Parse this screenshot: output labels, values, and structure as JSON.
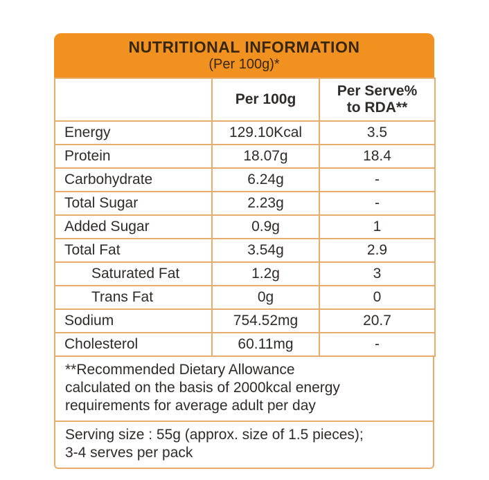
{
  "header": {
    "title": "NUTRITIONAL INFORMATION",
    "subtitle": "(Per 100g)*"
  },
  "table": {
    "columns": {
      "nutrient": "",
      "per_100g": "Per 100g",
      "per_serve_rda": [
        "Per Serve%",
        "to RDA**"
      ]
    },
    "rows": [
      {
        "label": "Energy",
        "per100g": "129.10Kcal",
        "per_serve": "3.5",
        "indent": false
      },
      {
        "label": "Protein",
        "per100g": "18.07g",
        "per_serve": "18.4",
        "indent": false
      },
      {
        "label": "Carbohydrate",
        "per100g": "6.24g",
        "per_serve": "-",
        "indent": false
      },
      {
        "label": "Total Sugar",
        "per100g": "2.23g",
        "per_serve": "-",
        "indent": false
      },
      {
        "label": "Added Sugar",
        "per100g": "0.9g",
        "per_serve": "1",
        "indent": false
      },
      {
        "label": "Total Fat",
        "per100g": "3.54g",
        "per_serve": "2.9",
        "indent": false
      },
      {
        "label": "Saturated Fat",
        "per100g": "1.2g",
        "per_serve": "3",
        "indent": true
      },
      {
        "label": "Trans Fat",
        "per100g": "0g",
        "per_serve": "0",
        "indent": true
      },
      {
        "label": "Sodium",
        "per100g": "754.52mg",
        "per_serve": "20.7",
        "indent": false
      },
      {
        "label": "Cholesterol",
        "per100g": "60.11mg",
        "per_serve": "-",
        "indent": false
      }
    ]
  },
  "footnotes": {
    "rda_note": [
      "**Recommended Dietary Allowance",
      "calculated on the basis of 2000kcal energy",
      "requirements for average adult per day"
    ],
    "serving_note": [
      "Serving size : 55g (approx. size of 1.5 pieces);",
      "3-4 serves per pack"
    ]
  },
  "colors": {
    "header_bg": "#F1911F",
    "header_text": "#38270F",
    "border": "#E7AC6C",
    "text": "#2E2B28",
    "page_bg": "#FFFFFF"
  }
}
